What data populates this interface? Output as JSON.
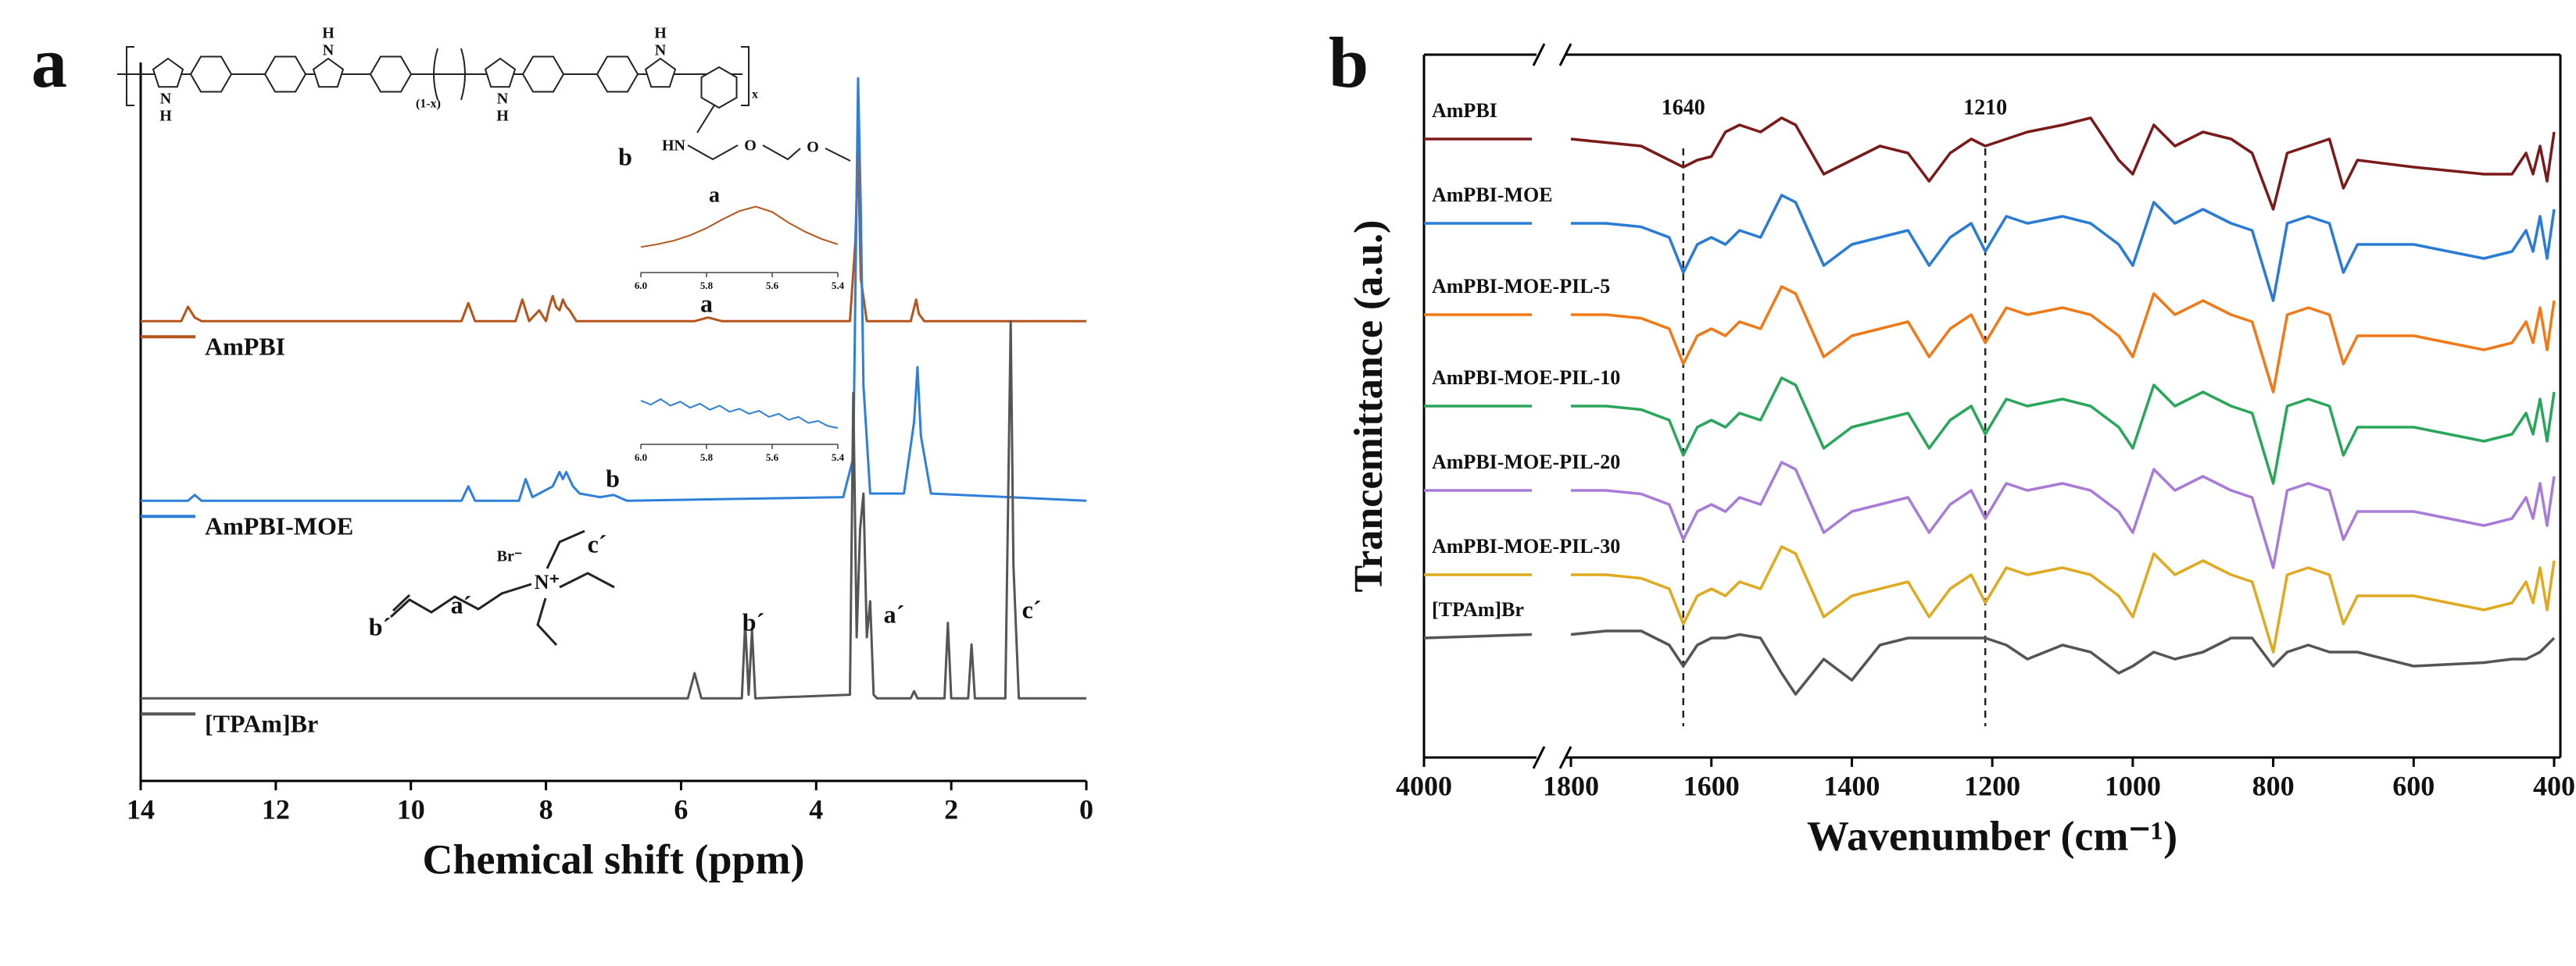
{
  "chart_data": [
    {
      "type": "line",
      "panel_label": "a",
      "xlabel": "Chemical shift (ppm)",
      "xlim": [
        14,
        0
      ],
      "xticks": [
        14,
        12,
        10,
        8,
        6,
        4,
        2,
        0
      ],
      "ylim": [
        0,
        100
      ],
      "series": [
        {
          "name": "AmPBI",
          "color": "#b5541c",
          "x": [
            14,
            13.4,
            13.3,
            13.2,
            13.1,
            9.25,
            9.15,
            9.05,
            8.45,
            8.35,
            8.25,
            8.1,
            8.0,
            7.95,
            7.9,
            7.85,
            7.8,
            7.75,
            7.7,
            7.65,
            7.55,
            5.8,
            5.6,
            5.4,
            3.5,
            3.42,
            3.38,
            3.34,
            3.25,
            2.6,
            2.52,
            2.5,
            2.48,
            2.4,
            0
          ],
          "values": [
            64,
            64,
            66,
            64.5,
            64,
            64,
            66.5,
            64,
            64,
            67,
            64,
            65.5,
            64,
            66,
            67.5,
            66,
            65.5,
            67,
            66,
            65.5,
            64,
            64,
            64.5,
            64,
            64,
            75,
            88,
            70,
            64,
            64,
            67,
            66,
            65,
            64,
            64
          ]
        },
        {
          "name": "AmPBI-MOE",
          "color": "#2f7fd8",
          "x": [
            14,
            13.3,
            13.2,
            13.1,
            9.25,
            9.15,
            9.05,
            8.4,
            8.3,
            8.2,
            7.9,
            7.8,
            7.75,
            7.7,
            7.6,
            7.5,
            7.2,
            7.0,
            6.8,
            3.6,
            3.45,
            3.38,
            3.34,
            3.3,
            3.2,
            2.7,
            2.55,
            2.5,
            2.45,
            2.3,
            0
          ],
          "values": [
            39,
            39,
            39.8,
            39,
            39,
            41,
            39,
            39,
            42,
            39.5,
            41,
            43,
            42,
            43,
            41,
            40,
            39.5,
            39.8,
            39,
            39.5,
            45,
            97.8,
            80,
            55,
            40,
            40,
            50,
            57.6,
            48,
            40,
            39
          ]
        },
        {
          "name": "[TPAm]Br",
          "color": "#555555",
          "x": [
            14,
            5.9,
            5.8,
            5.7,
            5.1,
            5.05,
            5.0,
            4.95,
            4.9,
            3.5,
            3.45,
            3.4,
            3.35,
            3.3,
            3.25,
            3.2,
            3.15,
            3.1,
            2.6,
            2.55,
            2.5,
            2.1,
            2.05,
            2.0,
            1.75,
            1.7,
            1.65,
            1.2,
            1.12,
            1.08,
            1.0,
            0
          ],
          "values": [
            11.5,
            11.5,
            15,
            11.5,
            11.5,
            22,
            12,
            21,
            11.5,
            12,
            54,
            20,
            35,
            40,
            20,
            25,
            12,
            11.5,
            11.5,
            12.5,
            11.5,
            11.5,
            22,
            11.5,
            11.5,
            19,
            11.5,
            11.5,
            64,
            30,
            11.5,
            11.5
          ]
        }
      ],
      "insets": [
        {
          "title": "a",
          "color": "#b5541c",
          "xlim": [
            6.0,
            5.4
          ],
          "ylim": [
            0,
            10
          ],
          "xticks": [
            {
              "value": 6.0,
              "label": "6.0"
            },
            5.8,
            5.6,
            5.4
          ],
          "x": [
            6.0,
            5.95,
            5.9,
            5.85,
            5.8,
            5.75,
            5.7,
            5.65,
            5.6,
            5.55,
            5.5,
            5.45,
            5.4
          ],
          "values": [
            2.5,
            2.8,
            3.2,
            3.8,
            4.6,
            5.6,
            6.5,
            7,
            6.4,
            5.2,
            4.2,
            3.4,
            2.8
          ]
        },
        {
          "color": "#2f7fd8",
          "xlim": [
            6.0,
            5.4
          ],
          "ylim": [
            0,
            10
          ],
          "xticks": [
            {
              "value": 6.0,
              "label": "6.0"
            },
            5.8,
            5.6,
            5.4
          ],
          "x": [
            6.0,
            5.97,
            5.94,
            5.91,
            5.88,
            5.85,
            5.82,
            5.79,
            5.76,
            5.73,
            5.7,
            5.67,
            5.64,
            5.61,
            5.58,
            5.55,
            5.52,
            5.49,
            5.46,
            5.43,
            5.4
          ],
          "values": [
            8,
            7.2,
            8.3,
            7,
            7.8,
            6.6,
            7.4,
            6.2,
            7,
            5.8,
            6.4,
            5.4,
            6,
            4.8,
            5.4,
            4.2,
            4.8,
            3.6,
            4,
            3,
            2.6
          ]
        }
      ],
      "annotations": [
        "a",
        "b",
        "b´",
        "a´",
        "c´",
        "b´",
        "a´",
        "c´"
      ],
      "structure_labels": [
        "N",
        "H",
        "H",
        "N",
        "(1-x)",
        "N",
        "H",
        "H",
        "N",
        "x",
        "b",
        "HN",
        "O",
        "O"
      ],
      "salt_labels": [
        "Br⁻",
        "N⁺"
      ]
    },
    {
      "type": "line",
      "panel_label": "b",
      "xlabel": "Wavenumber (cm⁻¹)",
      "ylabel": "Trancemittance (a.u.)",
      "xlim": [
        4000,
        400
      ],
      "xbreak": [
        3600,
        1800
      ],
      "ylim": [
        0,
        100
      ],
      "xticks": [
        4000,
        1800,
        1600,
        1400,
        1200,
        1000,
        800,
        600,
        400
      ],
      "reference_lines": [
        1640,
        1210
      ],
      "x": [
        4000,
        3600,
        1800,
        1750,
        1700,
        1660,
        1640,
        1620,
        1600,
        1580,
        1560,
        1530,
        1500,
        1480,
        1440,
        1400,
        1360,
        1320,
        1290,
        1260,
        1230,
        1210,
        1180,
        1150,
        1100,
        1060,
        1020,
        1000,
        970,
        940,
        900,
        860,
        830,
        800,
        780,
        750,
        720,
        700,
        680,
        600,
        500,
        460,
        440,
        430,
        420,
        410,
        400
      ],
      "series": [
        {
          "name": "AmPBI",
          "color": "#7b1a1a",
          "values": [
            88,
            88,
            88,
            87.5,
            87,
            85,
            84,
            85,
            85.5,
            89,
            90,
            89,
            91,
            90,
            83,
            85,
            87,
            86,
            82,
            86,
            88,
            87,
            88,
            89,
            90,
            91,
            85,
            83,
            90,
            87,
            89,
            88,
            86,
            78,
            86,
            87,
            88,
            81,
            85,
            84,
            83,
            83,
            86,
            83,
            87,
            82,
            89
          ]
        },
        {
          "name": "AmPBI-MOE",
          "color": "#2a7bd4",
          "values": [
            76,
            76,
            76,
            76,
            75.5,
            74,
            69,
            73,
            74,
            73,
            75,
            74,
            80,
            79,
            70,
            73,
            74,
            75,
            70,
            74,
            76,
            72,
            77,
            76,
            77,
            76,
            73,
            70,
            79,
            76,
            78,
            76,
            75,
            65,
            76,
            77,
            76,
            69,
            73,
            73,
            71,
            72,
            75,
            72,
            77,
            71,
            78
          ]
        },
        {
          "name": "AmPBI-MOE-PIL-5",
          "color": "#f07a1a",
          "values": [
            63,
            63,
            63,
            63,
            62.5,
            61,
            56,
            60,
            61,
            60,
            62,
            61,
            67,
            66,
            57,
            60,
            61,
            62,
            57,
            61,
            63,
            59,
            64,
            63,
            64,
            63,
            60,
            57,
            66,
            63,
            65,
            63,
            62,
            52,
            63,
            64,
            63,
            56,
            60,
            60,
            58,
            59,
            62,
            59,
            64,
            58,
            65
          ]
        },
        {
          "name": "AmPBI-MOE-PIL-10",
          "color": "#2aa65a",
          "values": [
            50,
            50,
            50,
            50,
            49.5,
            48,
            43,
            47,
            48,
            47,
            49,
            48,
            54,
            53,
            44,
            47,
            48,
            49,
            44,
            48,
            50,
            46,
            51,
            50,
            51,
            50,
            47,
            44,
            53,
            50,
            52,
            50,
            49,
            39,
            50,
            51,
            50,
            43,
            47,
            47,
            45,
            46,
            49,
            46,
            51,
            45,
            52
          ]
        },
        {
          "name": "AmPBI-MOE-PIL-20",
          "color": "#a87bd8",
          "values": [
            38,
            38,
            38,
            38,
            37.5,
            36,
            31,
            35,
            36,
            35,
            37,
            36,
            42,
            41,
            32,
            35,
            36,
            37,
            32,
            36,
            38,
            34,
            39,
            38,
            39,
            38,
            35,
            32,
            41,
            38,
            40,
            38,
            37,
            27,
            38,
            39,
            38,
            31,
            35,
            35,
            33,
            34,
            37,
            34,
            39,
            33,
            40
          ]
        },
        {
          "name": "AmPBI-MOE-PIL-30",
          "color": "#e0aa20",
          "values": [
            26,
            26,
            26,
            26,
            25.5,
            24,
            19,
            23,
            24,
            23,
            25,
            24,
            30,
            29,
            20,
            23,
            24,
            25,
            20,
            24,
            26,
            22,
            27,
            26,
            27,
            26,
            23,
            20,
            29,
            26,
            28,
            26,
            25,
            15,
            26,
            27,
            26,
            19,
            23,
            23,
            21,
            22,
            25,
            22,
            27,
            21,
            28
          ]
        },
        {
          "name": "[TPAm]Br",
          "color": "#555555",
          "values": [
            17,
            17.5,
            17.5,
            18,
            18,
            16,
            13,
            16,
            17,
            17,
            17.5,
            17,
            12,
            9,
            14,
            11,
            16,
            17,
            17,
            17,
            17,
            17,
            16,
            14,
            16,
            15,
            12,
            13,
            15,
            14,
            15,
            17,
            17,
            13,
            15,
            16,
            15,
            15,
            15,
            13,
            13.5,
            14,
            14,
            14.5,
            15,
            16,
            17
          ]
        }
      ]
    }
  ]
}
